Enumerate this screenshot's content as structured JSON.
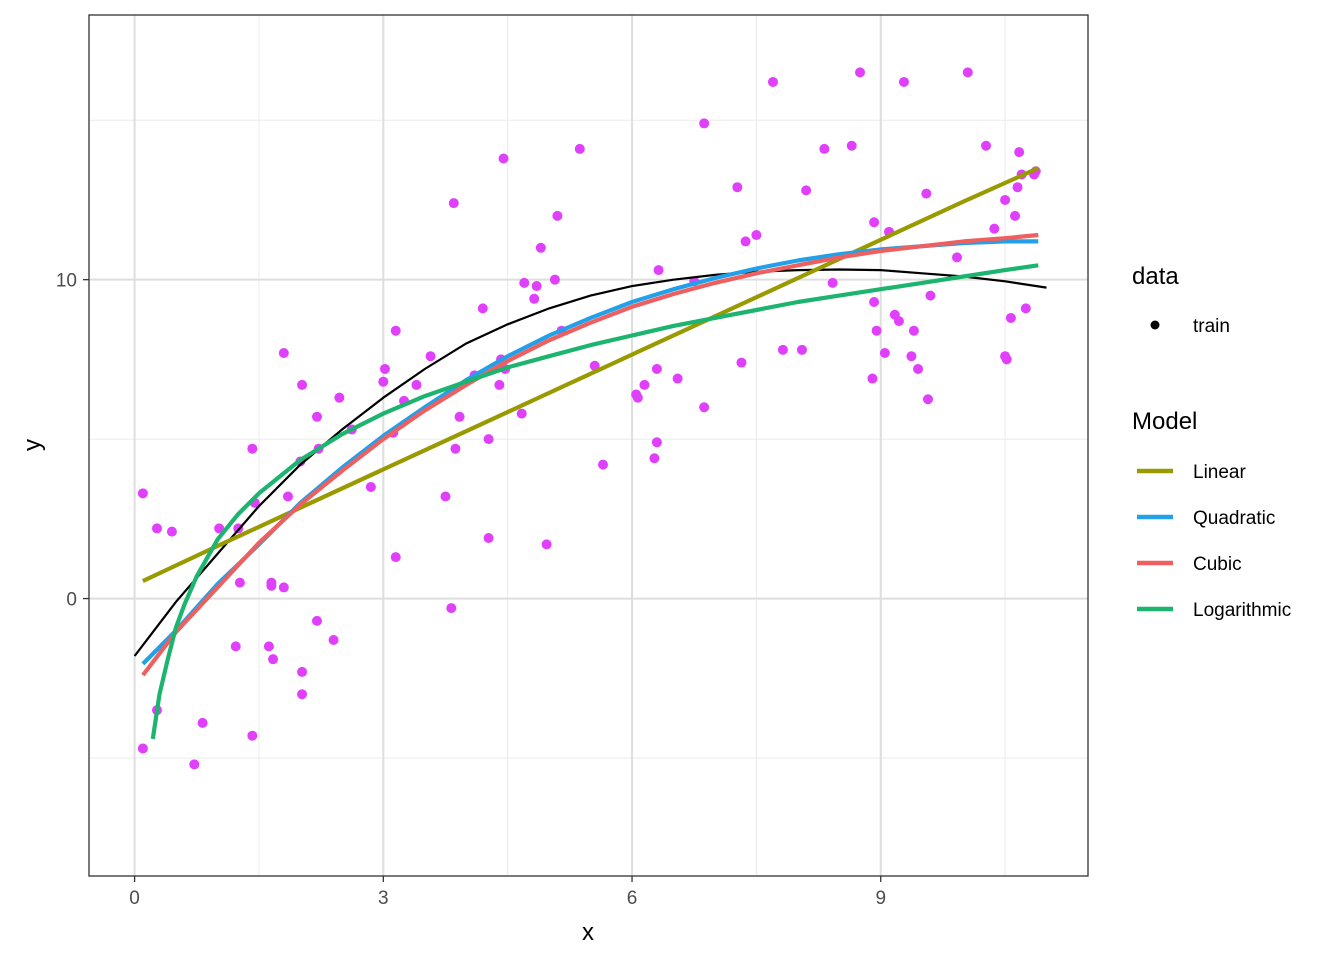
{
  "chart_data": {
    "type": "scatter",
    "xlabel": "x",
    "ylabel": "y",
    "xlim": [
      -0.55,
      11.5
    ],
    "ylim": [
      -8.7,
      18.3
    ],
    "x_ticks": [
      0,
      3,
      6,
      9
    ],
    "x_tick_labels": [
      "0",
      "3",
      "6",
      "9"
    ],
    "y_ticks": [
      0,
      10
    ],
    "y_tick_labels": [
      "0",
      "10"
    ],
    "x_minor_ticks": [
      1.5,
      4.5,
      7.5,
      10.5
    ],
    "y_minor_ticks": [
      -5,
      5,
      15
    ],
    "grid": true,
    "point_color": "#E040FB",
    "points_series": {
      "name": "train",
      "points": [
        [
          0.1,
          3.3
        ],
        [
          0.1,
          -4.7
        ],
        [
          0.27,
          -3.5
        ],
        [
          0.27,
          2.2
        ],
        [
          0.45,
          2.1
        ],
        [
          0.72,
          -5.2
        ],
        [
          0.82,
          -3.9
        ],
        [
          1.02,
          2.2
        ],
        [
          1.22,
          -1.5
        ],
        [
          1.25,
          2.2
        ],
        [
          1.27,
          0.5
        ],
        [
          1.42,
          4.7
        ],
        [
          1.42,
          -4.3
        ],
        [
          1.45,
          3.0
        ],
        [
          1.62,
          -1.5
        ],
        [
          1.65,
          0.4
        ],
        [
          1.65,
          0.5
        ],
        [
          1.67,
          -1.9
        ],
        [
          1.8,
          0.35
        ],
        [
          1.8,
          7.7
        ],
        [
          1.85,
          3.2
        ],
        [
          2.0,
          4.3
        ],
        [
          2.02,
          6.7
        ],
        [
          2.02,
          -2.3
        ],
        [
          2.02,
          -3.0
        ],
        [
          2.2,
          5.7
        ],
        [
          2.2,
          -0.7
        ],
        [
          2.22,
          4.7
        ],
        [
          2.4,
          -1.3
        ],
        [
          2.47,
          6.3
        ],
        [
          2.62,
          5.3
        ],
        [
          2.85,
          3.5
        ],
        [
          3.0,
          6.8
        ],
        [
          3.02,
          7.2
        ],
        [
          3.12,
          5.2
        ],
        [
          3.15,
          8.4
        ],
        [
          3.15,
          1.3
        ],
        [
          3.25,
          6.2
        ],
        [
          3.4,
          6.7
        ],
        [
          3.57,
          7.6
        ],
        [
          3.75,
          3.2
        ],
        [
          3.82,
          -0.3
        ],
        [
          3.85,
          12.4
        ],
        [
          3.87,
          4.7
        ],
        [
          3.92,
          5.7
        ],
        [
          4.1,
          7.0
        ],
        [
          4.2,
          9.1
        ],
        [
          4.27,
          5.0
        ],
        [
          4.27,
          1.9
        ],
        [
          4.4,
          6.7
        ],
        [
          4.42,
          7.5
        ],
        [
          4.45,
          13.8
        ],
        [
          4.47,
          7.2
        ],
        [
          4.67,
          5.8
        ],
        [
          4.7,
          9.9
        ],
        [
          4.82,
          9.4
        ],
        [
          4.85,
          9.8
        ],
        [
          4.9,
          11.0
        ],
        [
          4.97,
          1.7
        ],
        [
          5.07,
          10.0
        ],
        [
          5.1,
          12.0
        ],
        [
          5.15,
          8.4
        ],
        [
          5.37,
          14.1
        ],
        [
          5.55,
          7.3
        ],
        [
          5.65,
          4.2
        ],
        [
          6.05,
          6.4
        ],
        [
          6.07,
          6.3
        ],
        [
          6.15,
          6.7
        ],
        [
          6.27,
          4.4
        ],
        [
          6.3,
          4.9
        ],
        [
          6.3,
          7.2
        ],
        [
          6.32,
          10.3
        ],
        [
          6.55,
          6.9
        ],
        [
          6.75,
          9.95
        ],
        [
          6.87,
          14.9
        ],
        [
          6.87,
          6.0
        ],
        [
          7.27,
          12.9
        ],
        [
          7.32,
          7.4
        ],
        [
          7.37,
          11.2
        ],
        [
          7.5,
          11.4
        ],
        [
          7.7,
          16.2
        ],
        [
          7.82,
          7.8
        ],
        [
          8.05,
          7.8
        ],
        [
          8.1,
          12.8
        ],
        [
          8.32,
          14.1
        ],
        [
          8.42,
          9.9
        ],
        [
          8.65,
          14.2
        ],
        [
          8.75,
          16.5
        ],
        [
          8.9,
          6.9
        ],
        [
          8.92,
          11.8
        ],
        [
          8.92,
          9.3
        ],
        [
          8.95,
          8.4
        ],
        [
          9.05,
          7.7
        ],
        [
          9.1,
          11.5
        ],
        [
          9.17,
          8.9
        ],
        [
          9.22,
          8.7
        ],
        [
          9.28,
          16.2
        ],
        [
          9.37,
          7.6
        ],
        [
          9.4,
          8.4
        ],
        [
          9.45,
          7.2
        ],
        [
          9.55,
          12.7
        ],
        [
          9.57,
          6.25
        ],
        [
          9.6,
          9.5
        ],
        [
          9.92,
          10.7
        ],
        [
          10.05,
          16.5
        ],
        [
          10.27,
          14.2
        ],
        [
          10.37,
          11.6
        ],
        [
          10.5,
          12.5
        ],
        [
          10.5,
          7.6
        ],
        [
          10.52,
          7.5
        ],
        [
          10.57,
          8.8
        ],
        [
          10.62,
          12.0
        ],
        [
          10.65,
          12.9
        ],
        [
          10.67,
          14.0
        ],
        [
          10.7,
          13.3
        ],
        [
          10.75,
          9.1
        ],
        [
          10.85,
          13.3
        ],
        [
          10.87,
          13.4
        ]
      ]
    },
    "true_curve": {
      "color": "#000000",
      "points": [
        [
          0,
          -1.8
        ],
        [
          0.5,
          -0.1
        ],
        [
          1,
          1.4
        ],
        [
          1.5,
          2.9
        ],
        [
          2,
          4.2
        ],
        [
          2.5,
          5.3
        ],
        [
          3,
          6.3
        ],
        [
          3.5,
          7.2
        ],
        [
          4,
          8.0
        ],
        [
          4.5,
          8.6
        ],
        [
          5,
          9.1
        ],
        [
          5.5,
          9.5
        ],
        [
          6,
          9.8
        ],
        [
          6.5,
          10.0
        ],
        [
          7,
          10.15
        ],
        [
          7.5,
          10.25
        ],
        [
          8,
          10.3
        ],
        [
          8.5,
          10.32
        ],
        [
          9,
          10.3
        ],
        [
          9.5,
          10.2
        ],
        [
          10,
          10.1
        ],
        [
          10.5,
          9.95
        ],
        [
          11,
          9.75
        ]
      ]
    },
    "series": [
      {
        "name": "Linear",
        "color": "#999900",
        "points": [
          [
            0.1,
            0.55
          ],
          [
            1,
            1.65
          ],
          [
            2,
            2.85
          ],
          [
            3,
            4.05
          ],
          [
            4,
            5.25
          ],
          [
            5,
            6.45
          ],
          [
            6,
            7.65
          ],
          [
            7,
            8.85
          ],
          [
            8,
            10.05
          ],
          [
            9,
            11.25
          ],
          [
            10,
            12.45
          ],
          [
            10.9,
            13.5
          ]
        ]
      },
      {
        "name": "Quadratic",
        "color": "#22A0E8",
        "points": [
          [
            0.1,
            -2.05
          ],
          [
            0.5,
            -1.0
          ],
          [
            1,
            0.45
          ],
          [
            1.5,
            1.7
          ],
          [
            2,
            3.0
          ],
          [
            2.5,
            4.1
          ],
          [
            3,
            5.1
          ],
          [
            3.5,
            6.0
          ],
          [
            4,
            6.85
          ],
          [
            4.5,
            7.6
          ],
          [
            5,
            8.25
          ],
          [
            5.5,
            8.8
          ],
          [
            6,
            9.3
          ],
          [
            6.5,
            9.7
          ],
          [
            7,
            10.05
          ],
          [
            7.5,
            10.35
          ],
          [
            8,
            10.6
          ],
          [
            8.5,
            10.8
          ],
          [
            9,
            10.95
          ],
          [
            9.5,
            11.05
          ],
          [
            10,
            11.15
          ],
          [
            10.5,
            11.2
          ],
          [
            10.9,
            11.2
          ]
        ]
      },
      {
        "name": "Cubic",
        "color": "#EE6060",
        "points": [
          [
            0.1,
            -2.4
          ],
          [
            0.5,
            -1.05
          ],
          [
            1,
            0.35
          ],
          [
            1.5,
            1.75
          ],
          [
            2,
            2.95
          ],
          [
            2.5,
            4.0
          ],
          [
            3,
            5.0
          ],
          [
            3.5,
            5.9
          ],
          [
            4,
            6.7
          ],
          [
            4.5,
            7.45
          ],
          [
            5,
            8.1
          ],
          [
            5.5,
            8.65
          ],
          [
            6,
            9.15
          ],
          [
            6.5,
            9.55
          ],
          [
            7,
            9.9
          ],
          [
            7.5,
            10.2
          ],
          [
            8,
            10.45
          ],
          [
            8.5,
            10.7
          ],
          [
            9,
            10.9
          ],
          [
            9.5,
            11.05
          ],
          [
            10,
            11.2
          ],
          [
            10.5,
            11.3
          ],
          [
            10.9,
            11.4
          ]
        ]
      },
      {
        "name": "Logarithmic",
        "color": "#1CB46E",
        "points": [
          [
            0.22,
            -4.4
          ],
          [
            0.3,
            -3.0
          ],
          [
            0.4,
            -1.9
          ],
          [
            0.5,
            -0.9
          ],
          [
            0.6,
            -0.2
          ],
          [
            0.75,
            0.7
          ],
          [
            1,
            1.85
          ],
          [
            1.25,
            2.65
          ],
          [
            1.5,
            3.3
          ],
          [
            2,
            4.35
          ],
          [
            2.5,
            5.15
          ],
          [
            3,
            5.8
          ],
          [
            3.5,
            6.35
          ],
          [
            4,
            6.8
          ],
          [
            4.5,
            7.25
          ],
          [
            5,
            7.6
          ],
          [
            5.5,
            7.95
          ],
          [
            6,
            8.25
          ],
          [
            6.5,
            8.55
          ],
          [
            7,
            8.8
          ],
          [
            7.5,
            9.05
          ],
          [
            8,
            9.3
          ],
          [
            8.5,
            9.5
          ],
          [
            9,
            9.7
          ],
          [
            9.5,
            9.9
          ],
          [
            10,
            10.1
          ],
          [
            10.5,
            10.3
          ],
          [
            10.9,
            10.45
          ]
        ]
      }
    ],
    "legend": {
      "placement": "right",
      "data_title": "data",
      "data_label": "train",
      "model_title": "Model",
      "model_labels": [
        "Linear",
        "Quadratic",
        "Cubic",
        "Logarithmic"
      ]
    }
  }
}
